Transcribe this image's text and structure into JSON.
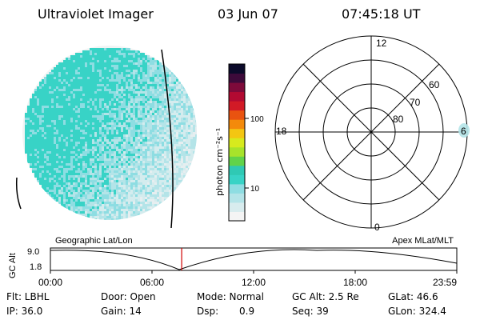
{
  "header": {
    "title": "Ultraviolet Imager",
    "date": "03 Jun 07",
    "time": "07:45:18 UT"
  },
  "colorbar": {
    "unit_label": "photon cm⁻²s⁻¹",
    "ticks": [
      "100",
      "10"
    ],
    "colors": [
      "#f4f4f4",
      "#d8ecee",
      "#b4e4e8",
      "#8edde2",
      "#38d3c6",
      "#2fc9b4",
      "#61d34a",
      "#a7e32b",
      "#d7ea1e",
      "#f3c612",
      "#f38a0b",
      "#e95310",
      "#d21a26",
      "#b20a32",
      "#7e0a3a",
      "#3d0a3a",
      "#0b0a2a"
    ]
  },
  "polar": {
    "labels": {
      "top": "12",
      "bottom": "0",
      "left": "18",
      "right": "6",
      "r60": "60",
      "r70": "70",
      "r80": "80"
    }
  },
  "timeline": {
    "ylabel": "GC Alt",
    "yticks": [
      "9.0",
      "1.8"
    ],
    "left_label": "Geographic Lat/Lon",
    "right_label": "Apex  MLat/MLT",
    "xticks": [
      "00:00",
      "06:00",
      "12:00",
      "18:00",
      "23:59"
    ],
    "current_time_fraction": 0.3231
  },
  "footer": {
    "row1": {
      "filter": "Flt: LBHL",
      "door": "Door: Open",
      "mode": "Mode: Normal",
      "gc_alt": "GC Alt: 2.5 Re",
      "glat": "GLat:  46.6"
    },
    "row2": {
      "ip": "IP: 36.0",
      "gain": "Gain: 14",
      "dsp_label": "Dsp:",
      "dsp_value": "0.9",
      "seq": "Seq: 39",
      "glon": "GLon: 324.4"
    }
  }
}
